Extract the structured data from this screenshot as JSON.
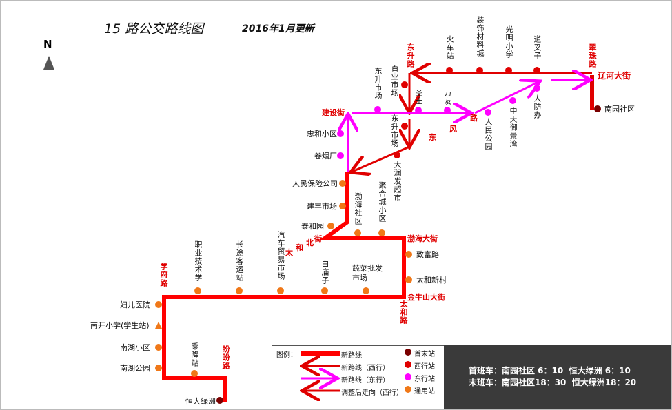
{
  "title": "15 路公交路线图",
  "updated": "2016年1月更新",
  "north": "N",
  "streets": {
    "dongsheng": "东升路",
    "cuizhu": "翠珠路",
    "liaohe": "辽河大街",
    "jianshe": "建设街",
    "dong": "东",
    "feng": "风",
    "lu": "路",
    "bohai": "渤海大街",
    "jinniushan": "金牛山大街",
    "taihe": "太和路",
    "taihebei_1": "太",
    "taihebei_2": "和",
    "taihebei_3": "北",
    "taihebei_4": "街",
    "xuefu": "学府路",
    "panpan": "盼盼路"
  },
  "west_stations": [
    "火车站",
    "装饰材料城",
    "光明小学",
    "道叉子",
    "百业市场",
    "东升市场",
    "大润发超市"
  ],
  "east_stations": [
    "东升市场",
    "圣士",
    "万友",
    "人民公园",
    "中天御景湾",
    "人防办",
    "忠和小区",
    "卷烟厂"
  ],
  "common_stations": [
    "人民保险公司",
    "建丰市场",
    "泰和园",
    "渤海社区",
    "聚合城小区",
    "致富路",
    "太和新村",
    "职业技术学",
    "长途客运站",
    "汽车贸易市场",
    "白庙子",
    "蔬菜批发市场",
    "妇儿医院",
    "南开小学(学生站)",
    "南湖小区",
    "南湖公园",
    "乘降站"
  ],
  "terminals": [
    "南园社区",
    "恒大绿洲"
  ],
  "legend": {
    "label": "图例：",
    "new_route": "新路线",
    "west": "新路线（西行）",
    "east": "新路线（东行）",
    "adjusted": "调整后走向（西行）",
    "terminal": "首末站",
    "west_stop": "西行站",
    "east_stop": "东行站",
    "common_stop": "通用站"
  },
  "schedule": {
    "first": "首班车：南园社区 6：10  恒大绿洲 6：10",
    "last": "末班车：南园社区18：30  恒大绿洲18：20"
  },
  "colors": {
    "route": "#ff0000",
    "west": "#e00000",
    "east": "#ff00ff",
    "common": "#f07818",
    "terminal": "#7a0000"
  }
}
